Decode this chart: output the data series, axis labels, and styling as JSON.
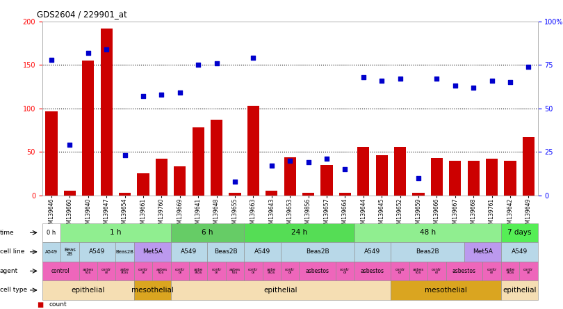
{
  "title": "GDS2604 / 229901_at",
  "samples": [
    "GSM139646",
    "GSM139660",
    "GSM139640",
    "GSM139647",
    "GSM139654",
    "GSM139661",
    "GSM139760",
    "GSM139669",
    "GSM139641",
    "GSM139648",
    "GSM139655",
    "GSM139663",
    "GSM139643",
    "GSM139653",
    "GSM139856",
    "GSM139657",
    "GSM139664",
    "GSM139644",
    "GSM139645",
    "GSM139652",
    "GSM139659",
    "GSM139666",
    "GSM139667",
    "GSM139668",
    "GSM139761",
    "GSM139642",
    "GSM139649"
  ],
  "counts": [
    97,
    5,
    155,
    192,
    3,
    25,
    42,
    33,
    78,
    87,
    3,
    103,
    5,
    44,
    3,
    35,
    3,
    56,
    46,
    56,
    3,
    43,
    40,
    40,
    42,
    40,
    67
  ],
  "percentiles": [
    78,
    29,
    82,
    84,
    23,
    57,
    58,
    59,
    75,
    76,
    8,
    79,
    17,
    20,
    19,
    21,
    15,
    68,
    66,
    67,
    10,
    67,
    63,
    62,
    66,
    65,
    74
  ],
  "time_groups": [
    {
      "label": "0 h",
      "start": 0,
      "end": 1,
      "color": "#ffffff"
    },
    {
      "label": "1 h",
      "start": 1,
      "end": 7,
      "color": "#90ee90"
    },
    {
      "label": "6 h",
      "start": 7,
      "end": 11,
      "color": "#66cc66"
    },
    {
      "label": "24 h",
      "start": 11,
      "end": 17,
      "color": "#55dd55"
    },
    {
      "label": "48 h",
      "start": 17,
      "end": 25,
      "color": "#90ee90"
    },
    {
      "label": "7 days",
      "start": 25,
      "end": 27,
      "color": "#55ee55"
    }
  ],
  "cell_line_groups": [
    {
      "label": "A549",
      "start": 0,
      "end": 1,
      "color": "#b8d8e8"
    },
    {
      "label": "Beas\n2B",
      "start": 1,
      "end": 2,
      "color": "#b8d8e8"
    },
    {
      "label": "A549",
      "start": 2,
      "end": 4,
      "color": "#b8d8e8"
    },
    {
      "label": "Beas2B",
      "start": 4,
      "end": 5,
      "color": "#b8d8e8"
    },
    {
      "label": "Met5A",
      "start": 5,
      "end": 7,
      "color": "#bb99ee"
    },
    {
      "label": "A549",
      "start": 7,
      "end": 9,
      "color": "#b8d8e8"
    },
    {
      "label": "Beas2B",
      "start": 9,
      "end": 11,
      "color": "#b8d8e8"
    },
    {
      "label": "A549",
      "start": 11,
      "end": 13,
      "color": "#b8d8e8"
    },
    {
      "label": "Beas2B",
      "start": 13,
      "end": 17,
      "color": "#b8d8e8"
    },
    {
      "label": "A549",
      "start": 17,
      "end": 19,
      "color": "#b8d8e8"
    },
    {
      "label": "Beas2B",
      "start": 19,
      "end": 23,
      "color": "#b8d8e8"
    },
    {
      "label": "Met5A",
      "start": 23,
      "end": 25,
      "color": "#bb99ee"
    },
    {
      "label": "A549",
      "start": 25,
      "end": 27,
      "color": "#b8d8e8"
    }
  ],
  "agent_groups": [
    {
      "label": "control",
      "start": 0,
      "end": 2,
      "color": "#ee66bb"
    },
    {
      "label": "asbes\ntos",
      "start": 2,
      "end": 3,
      "color": "#ee66bb"
    },
    {
      "label": "contr\nol",
      "start": 3,
      "end": 4,
      "color": "#ee66bb"
    },
    {
      "label": "asbe\nstos",
      "start": 4,
      "end": 5,
      "color": "#ee66bb"
    },
    {
      "label": "contr\nol",
      "start": 5,
      "end": 6,
      "color": "#ee66bb"
    },
    {
      "label": "asbes\ntos",
      "start": 6,
      "end": 7,
      "color": "#ee66bb"
    },
    {
      "label": "contr\nol",
      "start": 7,
      "end": 8,
      "color": "#ee66bb"
    },
    {
      "label": "asbe\nstos",
      "start": 8,
      "end": 9,
      "color": "#ee66bb"
    },
    {
      "label": "contr\nol",
      "start": 9,
      "end": 10,
      "color": "#ee66bb"
    },
    {
      "label": "asbes\ntos",
      "start": 10,
      "end": 11,
      "color": "#ee66bb"
    },
    {
      "label": "contr\nol",
      "start": 11,
      "end": 12,
      "color": "#ee66bb"
    },
    {
      "label": "asbe\nstos",
      "start": 12,
      "end": 13,
      "color": "#ee66bb"
    },
    {
      "label": "contr\nol",
      "start": 13,
      "end": 14,
      "color": "#ee66bb"
    },
    {
      "label": "asbestos",
      "start": 14,
      "end": 16,
      "color": "#ee66bb"
    },
    {
      "label": "contr\nol",
      "start": 16,
      "end": 17,
      "color": "#ee66bb"
    },
    {
      "label": "asbestos",
      "start": 17,
      "end": 19,
      "color": "#ee66bb"
    },
    {
      "label": "contr\nol",
      "start": 19,
      "end": 20,
      "color": "#ee66bb"
    },
    {
      "label": "asbes\ntos",
      "start": 20,
      "end": 21,
      "color": "#ee66bb"
    },
    {
      "label": "contr\nol",
      "start": 21,
      "end": 22,
      "color": "#ee66bb"
    },
    {
      "label": "asbestos",
      "start": 22,
      "end": 24,
      "color": "#ee66bb"
    },
    {
      "label": "contr\nol",
      "start": 24,
      "end": 25,
      "color": "#ee66bb"
    },
    {
      "label": "asbe\nstos",
      "start": 25,
      "end": 26,
      "color": "#ee66bb"
    },
    {
      "label": "contr\nol",
      "start": 26,
      "end": 27,
      "color": "#ee66bb"
    }
  ],
  "cell_type_groups": [
    {
      "label": "epithelial",
      "start": 0,
      "end": 5,
      "color": "#f5deb3"
    },
    {
      "label": "mesothelial",
      "start": 5,
      "end": 7,
      "color": "#daa520"
    },
    {
      "label": "epithelial",
      "start": 7,
      "end": 19,
      "color": "#f5deb3"
    },
    {
      "label": "mesothelial",
      "start": 19,
      "end": 25,
      "color": "#daa520"
    },
    {
      "label": "epithelial",
      "start": 25,
      "end": 27,
      "color": "#f5deb3"
    }
  ],
  "ylim_left": [
    0,
    200
  ],
  "ylim_right": [
    0,
    100
  ],
  "yticks_left": [
    0,
    50,
    100,
    150,
    200
  ],
  "yticks_right": [
    0,
    25,
    50,
    75,
    100
  ],
  "bar_color": "#cc0000",
  "dot_color": "#0000cc",
  "background_color": "#ffffff"
}
